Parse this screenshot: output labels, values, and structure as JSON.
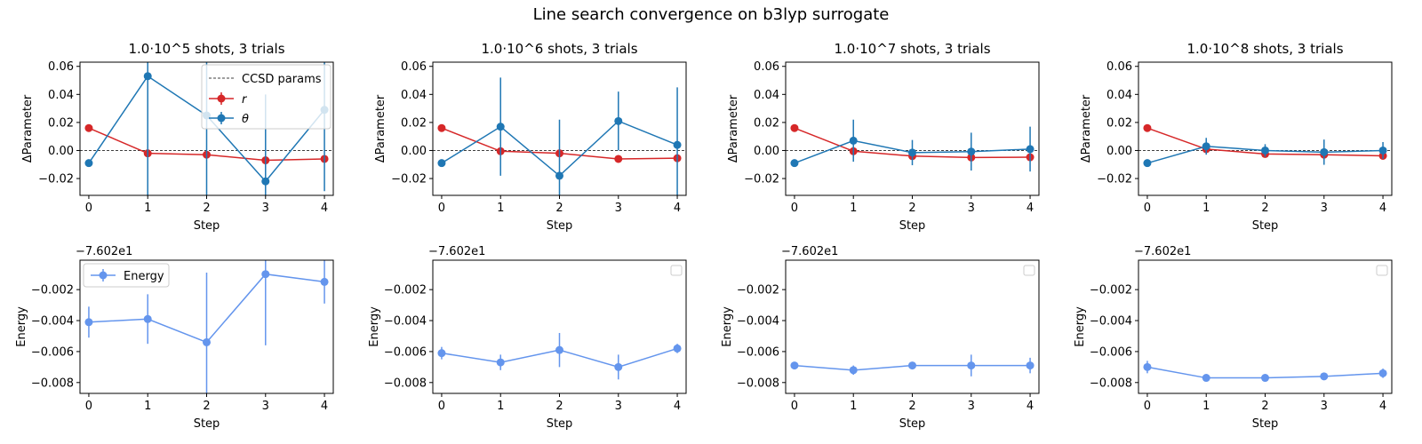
{
  "figure": {
    "title": "Line search convergence on b3lyp surrogate"
  },
  "colors": {
    "r": "#d62728",
    "theta": "#1f77b4",
    "energy": "#6495ed",
    "ccsd": "#000000"
  },
  "chart_data": [
    {
      "type": "line",
      "title": "1.0·10^5 shots, 3 trials",
      "xlabel": "Step",
      "ylabel": "ΔParameter",
      "x": [
        0,
        1,
        2,
        3,
        4
      ],
      "xticks": [
        "0",
        "1",
        "2",
        "3",
        "4"
      ],
      "yticks": [
        "0.06",
        "0.04",
        "0.02",
        "0.00",
        "−0.02"
      ],
      "ylim": [
        -0.032,
        0.063
      ],
      "ccsd_line": 0.0,
      "series": [
        {
          "name": "r",
          "color": "#d62728",
          "values": [
            0.016,
            -0.002,
            -0.003,
            -0.007,
            -0.006
          ],
          "errors": [
            0,
            0,
            0,
            0,
            0
          ]
        },
        {
          "name": "θ",
          "color": "#1f77b4",
          "values": [
            -0.009,
            0.053,
            0.025,
            -0.022,
            0.029
          ],
          "errors": [
            0,
            0.09,
            0.07,
            0.062,
            0.058
          ]
        }
      ],
      "legend": {
        "position": "upper right",
        "entries": [
          "CCSD params",
          "r",
          "θ"
        ]
      }
    },
    {
      "type": "line",
      "title": "1.0·10^6 shots, 3 trials",
      "xlabel": "Step",
      "ylabel": "ΔParameter",
      "x": [
        0,
        1,
        2,
        3,
        4
      ],
      "xticks": [
        "0",
        "1",
        "2",
        "3",
        "4"
      ],
      "yticks": [
        "0.06",
        "0.04",
        "0.02",
        "0.00",
        "−0.02"
      ],
      "ylim": [
        -0.032,
        0.063
      ],
      "ccsd_line": 0.0,
      "series": [
        {
          "name": "r",
          "color": "#d62728",
          "values": [
            0.016,
            -0.0005,
            -0.002,
            -0.006,
            -0.0055
          ],
          "errors": [
            0,
            0,
            0,
            0,
            0
          ]
        },
        {
          "name": "θ",
          "color": "#1f77b4",
          "values": [
            -0.009,
            0.017,
            -0.018,
            0.021,
            0.004
          ],
          "errors": [
            0,
            0.035,
            0.04,
            0.021,
            0.041
          ]
        }
      ]
    },
    {
      "type": "line",
      "title": "1.0·10^7 shots, 3 trials",
      "xlabel": "Step",
      "ylabel": "ΔParameter",
      "x": [
        0,
        1,
        2,
        3,
        4
      ],
      "xticks": [
        "0",
        "1",
        "2",
        "3",
        "4"
      ],
      "yticks": [
        "0.06",
        "0.04",
        "0.02",
        "0.00",
        "−0.02"
      ],
      "ylim": [
        -0.032,
        0.063
      ],
      "ccsd_line": 0.0,
      "series": [
        {
          "name": "r",
          "color": "#d62728",
          "values": [
            0.016,
            -0.0005,
            -0.004,
            -0.005,
            -0.0048
          ],
          "errors": [
            0,
            0,
            0,
            0,
            0
          ]
        },
        {
          "name": "θ",
          "color": "#1f77b4",
          "values": [
            -0.009,
            0.007,
            -0.0015,
            -0.0008,
            0.001
          ],
          "errors": [
            0,
            0.015,
            0.009,
            0.0135,
            0.016
          ]
        }
      ]
    },
    {
      "type": "line",
      "title": "1.0·10^8 shots, 3 trials",
      "xlabel": "Step",
      "ylabel": "ΔParameter",
      "x": [
        0,
        1,
        2,
        3,
        4
      ],
      "xticks": [
        "0",
        "1",
        "2",
        "3",
        "4"
      ],
      "yticks": [
        "0.06",
        "0.04",
        "0.02",
        "0.00",
        "−0.02"
      ],
      "ylim": [
        -0.032,
        0.063
      ],
      "ccsd_line": 0.0,
      "series": [
        {
          "name": "r",
          "color": "#d62728",
          "values": [
            0.016,
            0.001,
            -0.0025,
            -0.003,
            -0.0038
          ],
          "errors": [
            0,
            0,
            0,
            0,
            0
          ]
        },
        {
          "name": "θ",
          "color": "#1f77b4",
          "values": [
            -0.009,
            0.003,
            0.0,
            -0.0012,
            0.0
          ],
          "errors": [
            0,
            0.006,
            0.0045,
            0.009,
            0.006
          ]
        }
      ]
    },
    {
      "type": "line",
      "title": "",
      "offset_label": "−7.602e1",
      "xlabel": "Step",
      "ylabel": "Energy",
      "x": [
        0,
        1,
        2,
        3,
        4
      ],
      "xticks": [
        "0",
        "1",
        "2",
        "3",
        "4"
      ],
      "yticks": [
        "−0.002",
        "−0.004",
        "−0.006",
        "−0.008"
      ],
      "ylim": [
        -0.0087,
        -0.0001
      ],
      "series": [
        {
          "name": "Energy",
          "color": "#6495ed",
          "values": [
            -0.0041,
            -0.0039,
            -0.0054,
            -0.001,
            -0.0015
          ],
          "errors": [
            0.001,
            0.0016,
            0.0045,
            0.0046,
            0.0014
          ]
        }
      ],
      "legend": {
        "position": "upper left",
        "entries": [
          "Energy"
        ]
      }
    },
    {
      "type": "line",
      "title": "",
      "offset_label": "−7.602e1",
      "xlabel": "Step",
      "ylabel": "Energy",
      "x": [
        0,
        1,
        2,
        3,
        4
      ],
      "xticks": [
        "0",
        "1",
        "2",
        "3",
        "4"
      ],
      "yticks": [
        "−0.002",
        "−0.004",
        "−0.006",
        "−0.008"
      ],
      "ylim": [
        -0.0087,
        -0.0001
      ],
      "series": [
        {
          "name": "Energy",
          "color": "#6495ed",
          "values": [
            -0.0061,
            -0.0067,
            -0.0059,
            -0.007,
            -0.0058
          ],
          "errors": [
            0.0004,
            0.0005,
            0.0011,
            0.0008,
            0.0003
          ]
        }
      ],
      "legend": {
        "position": "upper right",
        "entries": []
      }
    },
    {
      "type": "line",
      "title": "",
      "offset_label": "−7.602e1",
      "xlabel": "Step",
      "ylabel": "Energy",
      "x": [
        0,
        1,
        2,
        3,
        4
      ],
      "xticks": [
        "0",
        "1",
        "2",
        "3",
        "4"
      ],
      "yticks": [
        "−0.002",
        "−0.004",
        "−0.006",
        "−0.008"
      ],
      "ylim": [
        -0.0087,
        -0.0001
      ],
      "series": [
        {
          "name": "Energy",
          "color": "#6495ed",
          "values": [
            -0.0069,
            -0.0072,
            -0.0069,
            -0.0069,
            -0.0069
          ],
          "errors": [
            0.0001,
            0.0003,
            0.0001,
            0.0007,
            0.0005
          ]
        }
      ],
      "legend": {
        "position": "upper right",
        "entries": []
      }
    },
    {
      "type": "line",
      "title": "",
      "offset_label": "−7.602e1",
      "xlabel": "Step",
      "ylabel": "Energy",
      "x": [
        0,
        1,
        2,
        3,
        4
      ],
      "xticks": [
        "0",
        "1",
        "2",
        "3",
        "4"
      ],
      "yticks": [
        "−0.002",
        "−0.004",
        "−0.006",
        "−0.008"
      ],
      "ylim": [
        -0.0087,
        -0.0001
      ],
      "series": [
        {
          "name": "Energy",
          "color": "#6495ed",
          "values": [
            -0.007,
            -0.0077,
            -0.0077,
            -0.0076,
            -0.0074
          ],
          "errors": [
            0.0004,
            0.0001,
            0.0001,
            0.0002,
            0.0003
          ]
        }
      ],
      "legend": {
        "position": "upper right",
        "entries": []
      }
    }
  ]
}
